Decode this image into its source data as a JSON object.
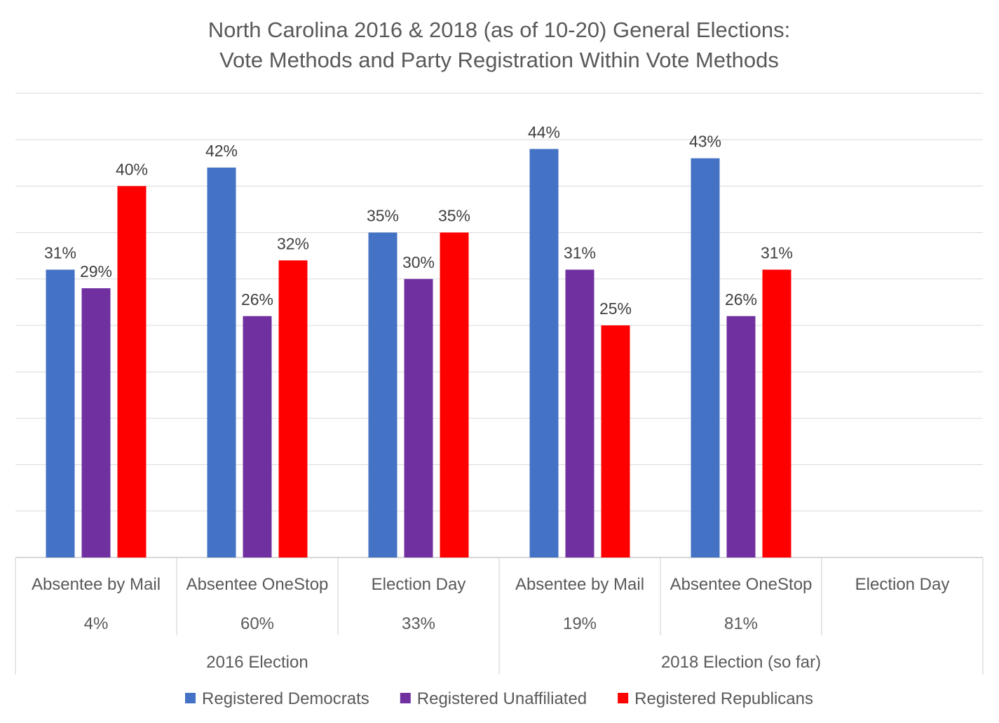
{
  "chart_data": {
    "type": "bar",
    "title_lines": [
      "North Carolina 2016 & 2018 (as of 10-20) General Elections:",
      "Vote Methods and Party Registration Within Vote Methods"
    ],
    "categories": [
      "Absentee by Mail",
      "Absentee OneStop",
      "Election Day",
      "Absentee by Mail",
      "Absentee OneStop",
      "Election Day"
    ],
    "category_shares": [
      "4%",
      "60%",
      "33%",
      "19%",
      "81%",
      ""
    ],
    "groups": [
      {
        "label": "2016 Election",
        "category_count": 3
      },
      {
        "label": "2018 Election (so far)",
        "category_count": 3
      }
    ],
    "series": [
      {
        "name": "Registered Democrats",
        "color": "#4472C4",
        "values": [
          31,
          42,
          35,
          44,
          43,
          null
        ]
      },
      {
        "name": "Registered Unaffiliated",
        "color": "#7030A0",
        "values": [
          29,
          26,
          30,
          31,
          26,
          null
        ]
      },
      {
        "name": "Registered Republicans",
        "color": "#FF0000",
        "values": [
          40,
          32,
          35,
          25,
          31,
          null
        ]
      }
    ],
    "value_labels": [
      [
        "31%",
        "42%",
        "35%",
        "44%",
        "43%",
        ""
      ],
      [
        "29%",
        "26%",
        "30%",
        "31%",
        "26%",
        ""
      ],
      [
        "40%",
        "32%",
        "35%",
        "25%",
        "31%",
        ""
      ]
    ],
    "ylim": [
      0,
      50
    ],
    "grid": true,
    "legend_position": "bottom"
  }
}
